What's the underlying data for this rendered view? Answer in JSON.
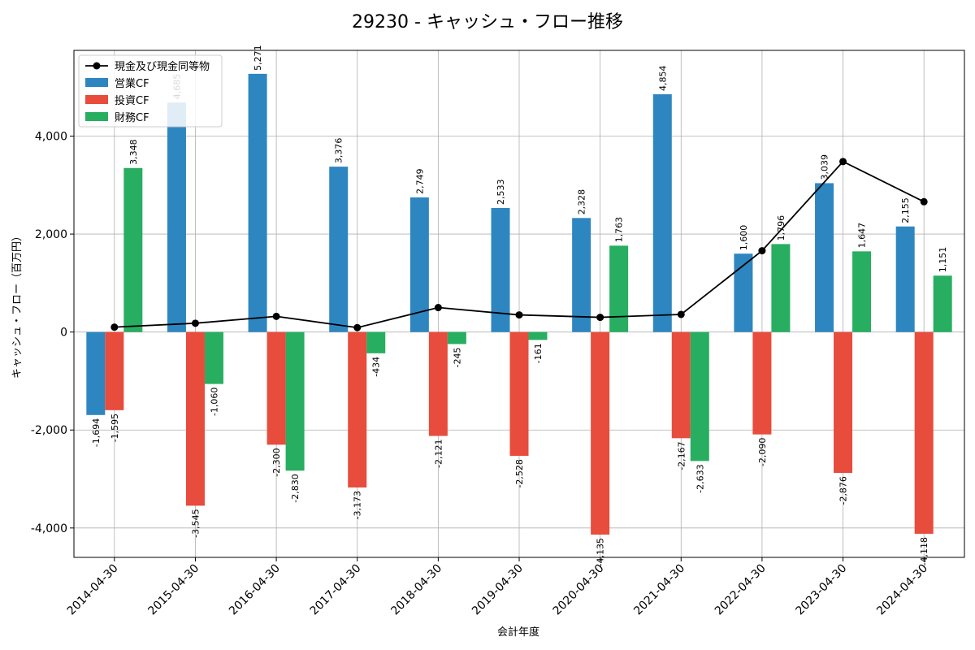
{
  "chart_data": {
    "type": "bar",
    "title": "29230 - キャッシュ・フロー推移",
    "xlabel": "会計年度",
    "ylabel": "キャッシュ・フロー（百万円）",
    "categories": [
      "2014-04-30",
      "2015-04-30",
      "2016-04-30",
      "2017-04-30",
      "2018-04-30",
      "2019-04-30",
      "2020-04-30",
      "2021-04-30",
      "2022-04-30",
      "2023-04-30",
      "2024-04-30"
    ],
    "ylim": [
      -4600,
      5750
    ],
    "yticks": [
      -4000,
      -2000,
      0,
      2000,
      4000
    ],
    "ytick_labels": [
      "-4,000",
      "-2,000",
      "0",
      "2,000",
      "4,000"
    ],
    "grid": true,
    "legend_position": "top-left",
    "series": [
      {
        "name": "営業CF",
        "kind": "bar",
        "color": "#2e86c1",
        "values": [
          -1694,
          4685,
          5271,
          3376,
          2749,
          2533,
          2328,
          4854,
          1600,
          3039,
          2155
        ],
        "labels": [
          "-1,694",
          "4,685",
          "5,271",
          "3,376",
          "2,749",
          "2,533",
          "2,328",
          "4,854",
          "1,600",
          "3,039",
          "2,155"
        ]
      },
      {
        "name": "投資CF",
        "kind": "bar",
        "color": "#e74c3c",
        "values": [
          -1595,
          -3545,
          -2300,
          -3173,
          -2121,
          -2528,
          -4135,
          -2167,
          -2090,
          -2876,
          -4118
        ],
        "labels": [
          "-1,595",
          "-3,545",
          "-2,300",
          "-3,173",
          "-2,121",
          "-2,528",
          "-4,135",
          "-2,167",
          "-2,090",
          "-2,876",
          "-4,118"
        ]
      },
      {
        "name": "財務CF",
        "kind": "bar",
        "color": "#27ae60",
        "values": [
          3348,
          -1060,
          -2830,
          -434,
          -245,
          -161,
          1763,
          -2633,
          1796,
          1647,
          1151
        ],
        "labels": [
          "3,348",
          "-1,060",
          "-2,830",
          "-434",
          "-245",
          "-161",
          "1,763",
          "-2,633",
          "1,796",
          "1,647",
          "1,151"
        ]
      },
      {
        "name": "現金及び現金同等物",
        "kind": "line",
        "color": "#000000",
        "values": [
          100,
          180,
          320,
          90,
          500,
          350,
          300,
          360,
          1660,
          3480,
          2660
        ]
      }
    ]
  }
}
